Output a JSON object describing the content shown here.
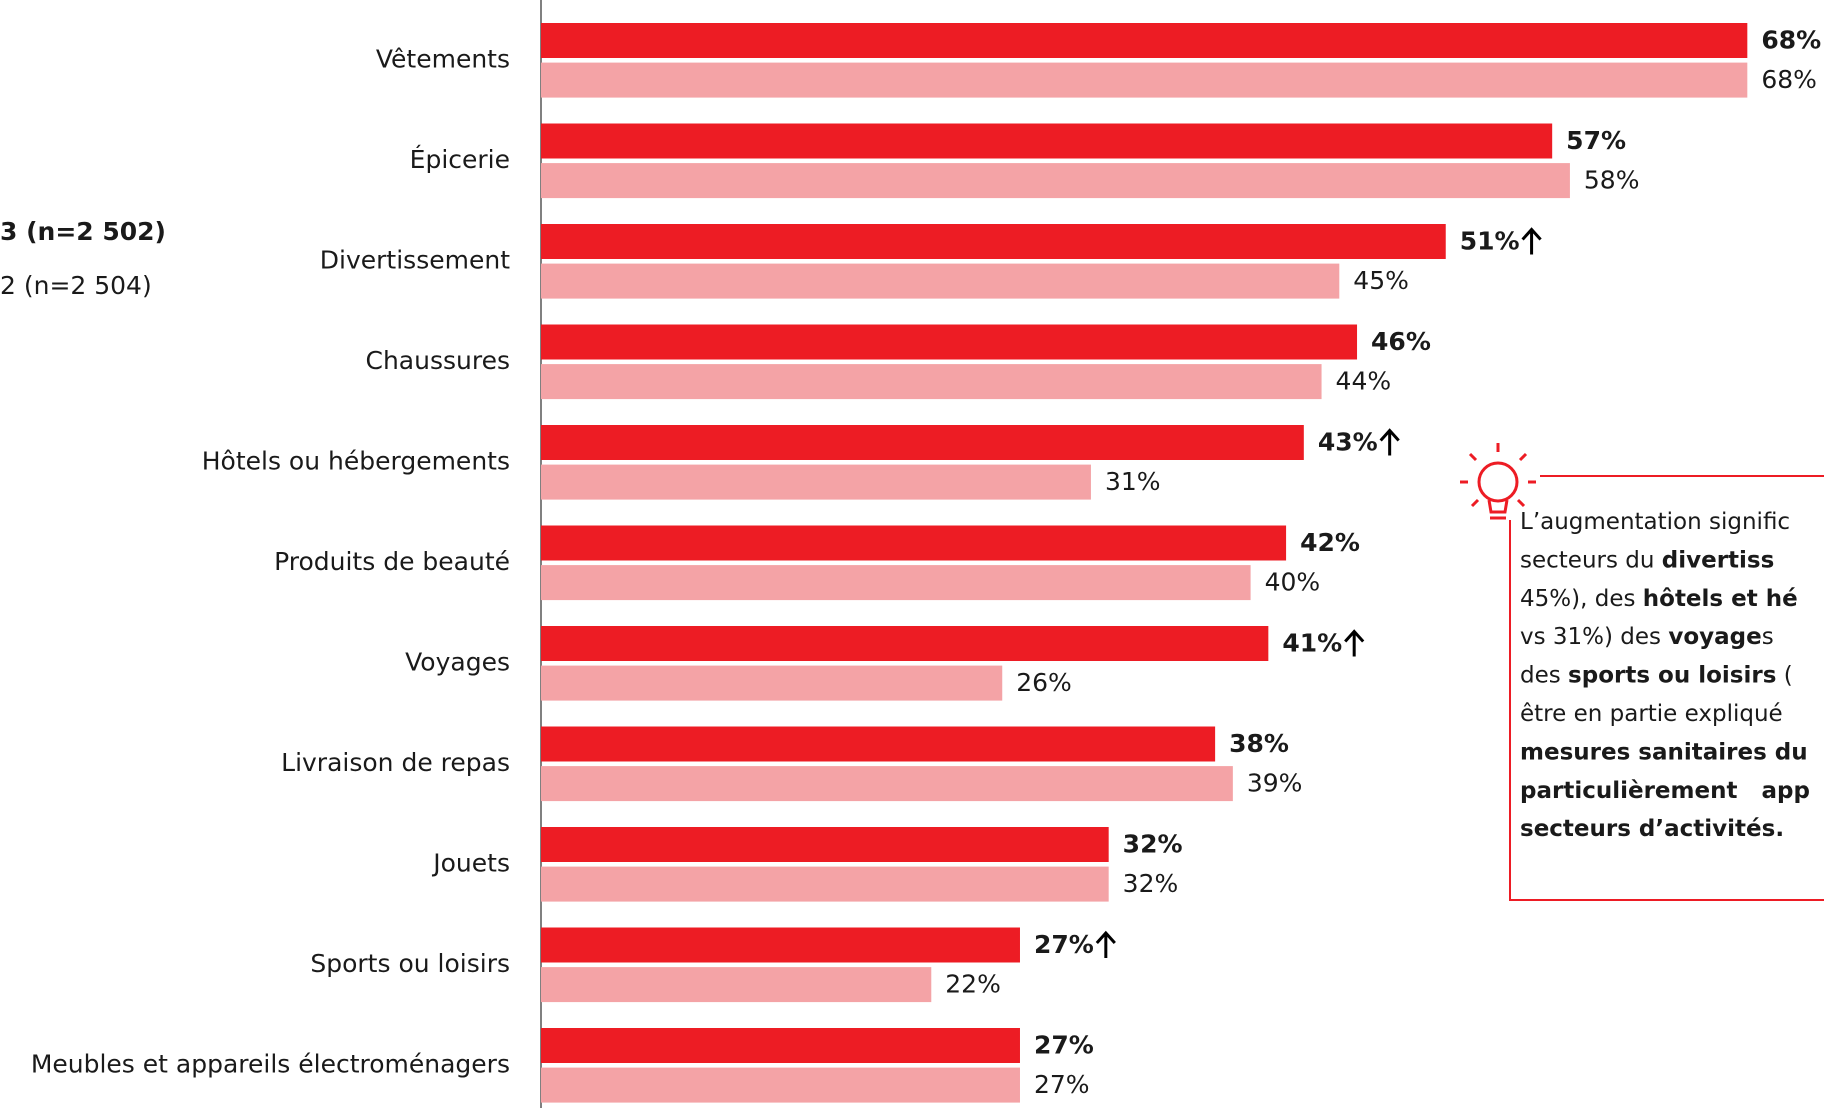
{
  "chart_data": {
    "type": "bar",
    "orientation": "horizontal",
    "categories": [
      "Vêtements",
      "Épicerie",
      "Divertissement",
      "Chaussures",
      "Hôtels ou hébergements",
      "Produits de beauté",
      "Voyages",
      "Livraison de repas",
      "Jouets",
      "Sports ou loisirs",
      "Meubles et appareils électroménagers"
    ],
    "series": [
      {
        "name": "3 (n=2 502)",
        "color": "#ed1c24",
        "values": [
          68,
          57,
          51,
          46,
          43,
          42,
          41,
          38,
          32,
          27,
          27
        ],
        "value_labels": [
          "68%",
          "57%",
          "51%",
          "46%",
          "43%",
          "42%",
          "41%",
          "38%",
          "32%",
          "27%",
          "27%"
        ],
        "significant_increase": [
          false,
          false,
          true,
          false,
          true,
          false,
          true,
          false,
          false,
          true,
          false
        ]
      },
      {
        "name": "2 (n=2 504)",
        "color": "#f4a3a6",
        "values": [
          68,
          58,
          45,
          44,
          31,
          40,
          26,
          39,
          32,
          22,
          27
        ],
        "value_labels": [
          "68%",
          "58%",
          "45%",
          "44%",
          "31%",
          "40%",
          "26%",
          "39%",
          "32%",
          "22%",
          "27%"
        ]
      }
    ],
    "xlim": [
      0,
      100
    ],
    "annotation": {
      "lines": [
        [
          {
            "text": "L’augmentation signific",
            "bold": false
          }
        ],
        [
          {
            "text": "secteurs du ",
            "bold": false
          },
          {
            "text": "divertiss",
            "bold": true
          }
        ],
        [
          {
            "text": "45%), des ",
            "bold": false
          },
          {
            "text": "hôtels et hé",
            "bold": true
          }
        ],
        [
          {
            "text": "vs 31%) des ",
            "bold": false
          },
          {
            "text": "voyage",
            "bold": true
          },
          {
            "text": "s",
            "bold": false
          }
        ],
        [
          {
            "text": "des ",
            "bold": false
          },
          {
            "text": "sports ou loisirs",
            "bold": true
          },
          {
            "text": " (",
            "bold": false
          }
        ],
        [
          {
            "text": "être en partie expliqué",
            "bold": false
          }
        ],
        [
          {
            "text": "mesures sanitaires du",
            "bold": true
          }
        ],
        [
          {
            "text": "particulièrement   app",
            "bold": true
          }
        ],
        [
          {
            "text": "secteurs d’activités.",
            "bold": true
          }
        ]
      ]
    }
  }
}
